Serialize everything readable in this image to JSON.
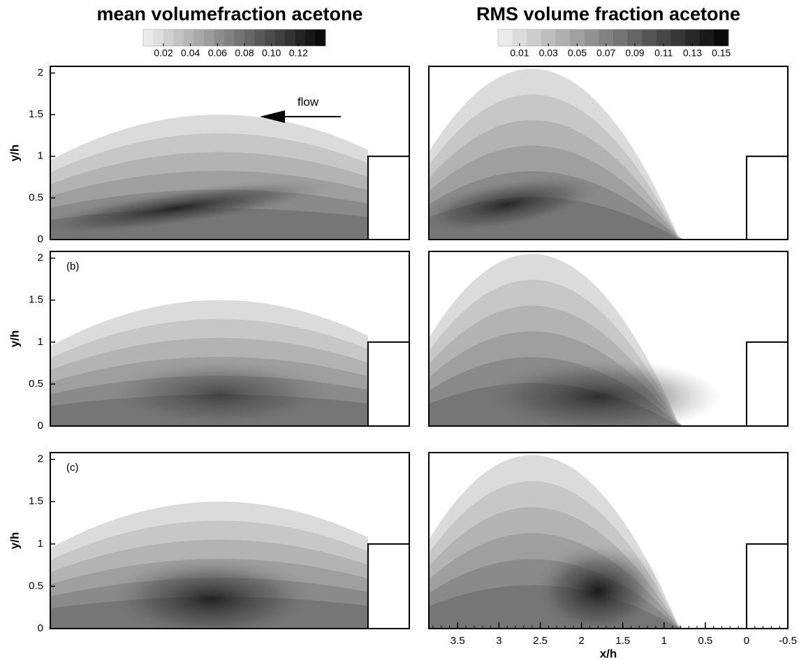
{
  "chart_data": [
    {
      "type": "contour",
      "title": "mean volumefraction acetone",
      "colorbar": {
        "range": [
          0.005,
          0.14
        ],
        "levels": 18,
        "ticks": [
          0.02,
          0.04,
          0.06,
          0.08,
          {
            "value": 0.1,
            "label": "0.10"
          },
          0.12
        ]
      },
      "xlim": [
        3.85,
        -0.5
      ],
      "ylim": [
        0,
        2.08
      ],
      "yticks": [
        0,
        0.5,
        1,
        1.5,
        2
      ],
      "ylabel": "y/h",
      "annotation": "flow"
    },
    {
      "type": "contour",
      "title": "RMS volume fraction acetone",
      "colorbar": {
        "range": [
          -0.005,
          0.155
        ],
        "levels": 16,
        "ticks": [
          0.01,
          0.03,
          0.05,
          0.07,
          0.09,
          0.11,
          0.13,
          0.15
        ]
      },
      "xlim": [
        3.85,
        -0.5
      ],
      "ylim": [
        0,
        2.08
      ]
    },
    {
      "type": "contour",
      "panel_label": "(b)",
      "xlim": [
        3.85,
        -0.5
      ],
      "ylim": [
        0,
        2.08
      ],
      "yticks": [
        0,
        0.5,
        1,
        1.5,
        2
      ],
      "ylabel": "y/h"
    },
    {
      "type": "contour",
      "xlim": [
        3.85,
        -0.5
      ],
      "ylim": [
        0,
        2.08
      ]
    },
    {
      "type": "contour",
      "panel_label": "(c)",
      "xlim": [
        3.85,
        -0.5
      ],
      "ylim": [
        0,
        2.08
      ],
      "yticks": [
        0,
        0.5,
        1,
        1.5,
        2
      ],
      "ylabel": "y/h"
    },
    {
      "type": "contour",
      "xlim": [
        3.85,
        -0.5
      ],
      "ylim": [
        0,
        2.08
      ],
      "xticks": [
        3.5,
        3,
        2.5,
        2,
        1.5,
        1,
        0.5,
        0,
        -0.5
      ],
      "xlabel": "x/h"
    }
  ]
}
